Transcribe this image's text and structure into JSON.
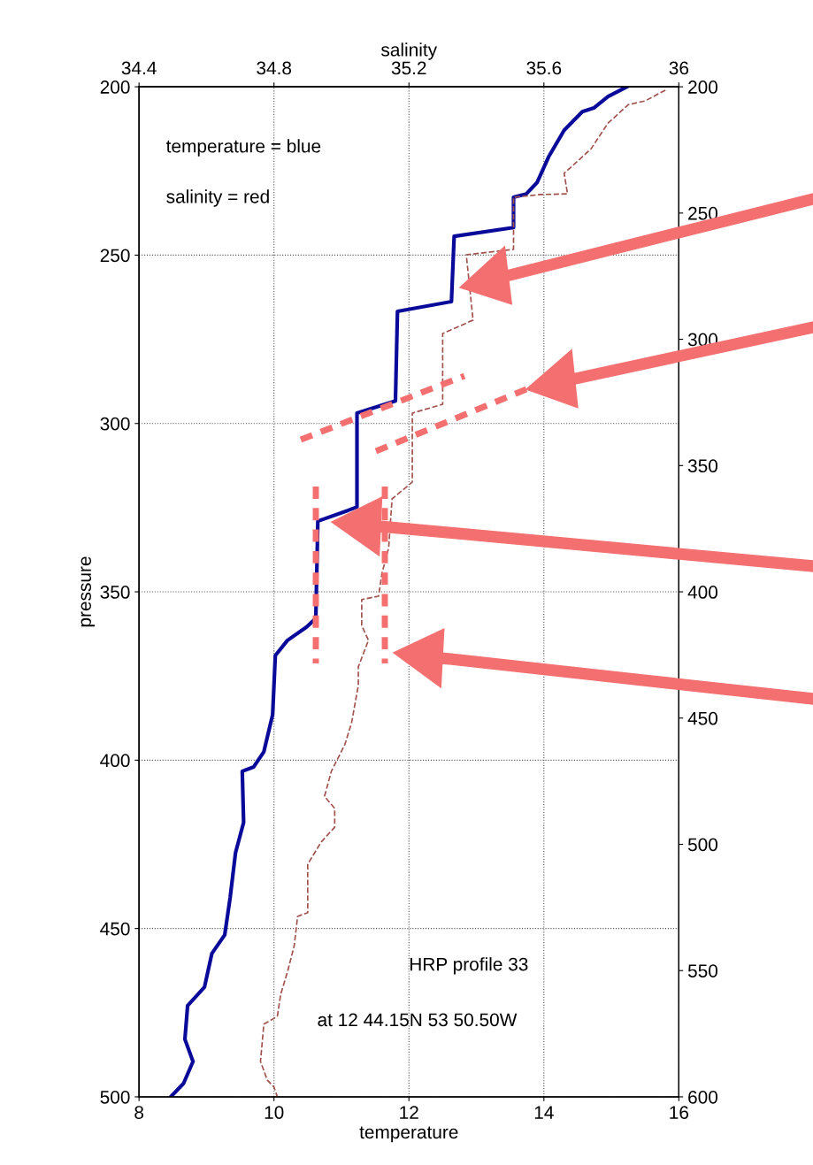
{
  "chart_data": {
    "type": "line",
    "xlabel": "temperature",
    "ylabel": "pressure",
    "x2label": "salinity",
    "xlim": [
      8,
      16
    ],
    "xticks": [
      8,
      10,
      12,
      14,
      16
    ],
    "ylim": [
      500,
      200
    ],
    "yticks": [
      200,
      250,
      300,
      350,
      400,
      450,
      500
    ],
    "x2lim": [
      34.4,
      36
    ],
    "x2ticks": [
      34.4,
      34.8,
      35.2,
      35.6,
      36
    ],
    "y2lim": [
      600,
      200
    ],
    "y2ticks": [
      200,
      250,
      300,
      350,
      400,
      450,
      500,
      550,
      600
    ],
    "grid": true,
    "annotations": [
      "temperature = blue",
      "salinity = red",
      "HRP profile 33",
      "at 12 44.15N 53 50.50W"
    ],
    "series": [
      {
        "color": "#0a0a9a",
        "line_style": "solid",
        "x": [
          15.23,
          14.95,
          14.74,
          14.57,
          14.3,
          14.07,
          13.9,
          13.74,
          13.55,
          13.55,
          12.67,
          12.63,
          11.83,
          11.8,
          11.23,
          11.23,
          11.1,
          10.65,
          10.62,
          10.48,
          10.2,
          10.02,
          9.98,
          9.85,
          9.7,
          9.53,
          9.55,
          9.43,
          9.35,
          9.27,
          9.08,
          8.97,
          8.72,
          8.68,
          8.8,
          8.66,
          8.47
        ],
        "values": [
          200,
          202.9,
          206.3,
          207.4,
          212.9,
          220.8,
          228.4,
          231.8,
          232.8,
          241.8,
          244.4,
          263.8,
          266.7,
          293.3,
          296.9,
          324.8,
          325.8,
          329.0,
          357.9,
          360.5,
          364.4,
          368.9,
          386.5,
          397.5,
          402.0,
          403.3,
          418.5,
          427.5,
          440.9,
          451.9,
          457.4,
          467.4,
          472.9,
          482.9,
          489.5,
          496.0,
          500
        ]
      },
      {
        "color": "#a0524d",
        "line_style": "dashed",
        "axis": "x2",
        "x": [
          35.96,
          35.9,
          35.85,
          35.79,
          35.74,
          35.68,
          35.66,
          35.67,
          35.59,
          35.51,
          35.51,
          35.37,
          35.39,
          35.3,
          35.3,
          35.21,
          35.21,
          35.15,
          35.14,
          35.12,
          35.11,
          35.06,
          35.06,
          35.08,
          35.05,
          35.05,
          35.03,
          35.01,
          34.97,
          34.95,
          34.96,
          34.98,
          34.98,
          34.94,
          34.9,
          34.9,
          34.87,
          34.86,
          34.84,
          34.82,
          34.81,
          34.77,
          34.76,
          34.78,
          34.8,
          34.81
        ],
        "values": [
          201,
          204.2,
          205.3,
          210.8,
          218.4,
          223.9,
          225.7,
          231.8,
          232.0,
          232.8,
          248.3,
          249.9,
          269.3,
          273.3,
          294.3,
          296.9,
          317.4,
          322.4,
          336.9,
          344.5,
          351.3,
          352.3,
          360.0,
          364.4,
          372.3,
          377.8,
          388.9,
          395.4,
          403.3,
          410.7,
          412.0,
          414.3,
          419.9,
          424.3,
          430.9,
          445.3,
          446.4,
          455.1,
          462.9,
          469.5,
          476.1,
          478.4,
          489.5,
          495.0,
          497.1,
          500
        ]
      }
    ]
  }
}
